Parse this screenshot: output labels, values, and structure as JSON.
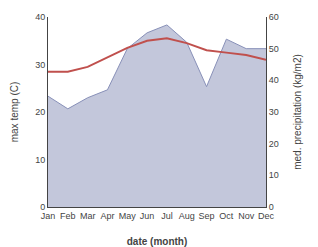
{
  "chart_data": {
    "type": "line",
    "categories": [
      "Jan",
      "Feb",
      "Mar",
      "Apr",
      "May",
      "Jun",
      "Jul",
      "Aug",
      "Sep",
      "Oct",
      "Nov",
      "Dec"
    ],
    "series": [
      {
        "type": "area",
        "axis": "y2",
        "color": "#8890b8",
        "values": [
          35.0,
          31.0,
          34.5,
          37.0,
          50.0,
          55.0,
          57.5,
          52.0,
          38.0,
          53.0,
          50.0,
          50.0
        ]
      },
      {
        "type": "line",
        "color": "#c0504d",
        "values": [
          28.5,
          28.5,
          29.5,
          31.5,
          33.5,
          35.0,
          35.5,
          34.5,
          33.0,
          32.5,
          32.0,
          31.0
        ]
      }
    ],
    "xlabel": "date (month)",
    "ylabel": "max temp (C)",
    "y2label": "med. precipitation (kg/m2)",
    "ylim": [
      0,
      40
    ],
    "yticks": [
      0,
      10,
      20,
      30,
      40
    ],
    "y2lim": [
      0,
      60
    ],
    "y2ticks": [
      0,
      10,
      20,
      30,
      40,
      50,
      60
    ],
    "grid": false
  }
}
